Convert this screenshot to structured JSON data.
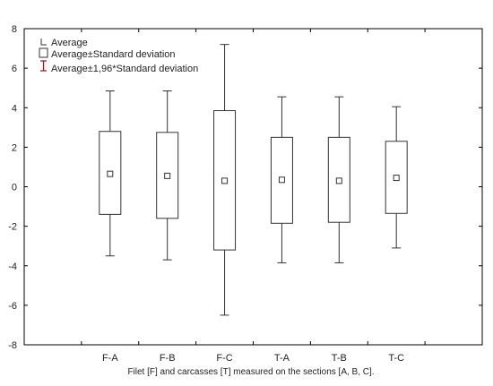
{
  "chart_data": {
    "type": "box",
    "xlabel": "Filet [F] and carcasses [T] measured on the sections [A, B, C].",
    "ylabel": "",
    "ylim": [
      -8,
      8
    ],
    "yticks": [
      -8,
      -6,
      -4,
      -2,
      0,
      2,
      4,
      6,
      8
    ],
    "grid": false,
    "legend_position": "top-left",
    "legend": [
      {
        "symbol": "mean-marker",
        "label": "Average"
      },
      {
        "symbol": "box",
        "label": "Average±Standard deviation"
      },
      {
        "symbol": "whisker",
        "label": "Average±1,96*Standard deviation"
      }
    ],
    "categories": [
      "F-A",
      "F-B",
      "F-C",
      "T-A",
      "T-B",
      "T-C"
    ],
    "mean": [
      0.65,
      0.55,
      0.3,
      0.35,
      0.3,
      0.45
    ],
    "box_low": [
      -1.4,
      -1.6,
      -3.2,
      -1.85,
      -1.8,
      -1.35
    ],
    "box_high": [
      2.8,
      2.75,
      3.85,
      2.5,
      2.5,
      2.3
    ],
    "whisker_low": [
      -3.5,
      -3.7,
      -6.5,
      -3.85,
      -3.85,
      -3.1
    ],
    "whisker_high": [
      4.85,
      4.85,
      7.2,
      4.55,
      4.55,
      4.05
    ],
    "colors": {
      "axis": "#000000",
      "box": "#333333",
      "legend_whisker": "#9b1b1b",
      "text": "#222222"
    }
  }
}
